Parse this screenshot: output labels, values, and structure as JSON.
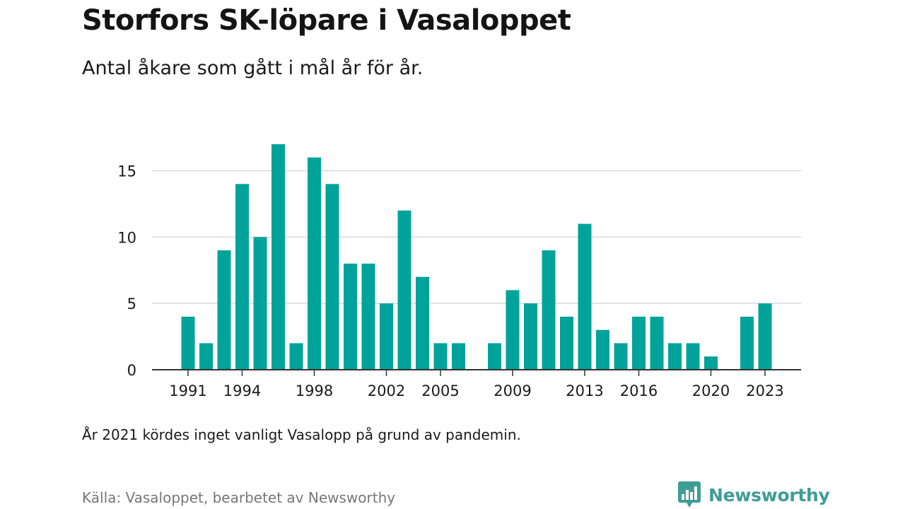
{
  "header": {
    "title": "Storfors SK-löpare i Vasaloppet",
    "subtitle": "Antal åkare som gått i mål år för år."
  },
  "note": "År 2021 kördes inget vanligt Vasalopp på grund av pandemin.",
  "source": "Källa: Vasaloppet, bearbetet av Newsworthy",
  "brand": {
    "name": "Newsworthy",
    "icon": "newsworthy-logo-icon",
    "color": "#3e9d96"
  },
  "colors": {
    "bar": "#00a39a",
    "grid": "#d9d9d9",
    "axis": "#333333"
  },
  "chart_data": {
    "type": "bar",
    "categories": [
      "1991",
      "1992",
      "1993",
      "1994",
      "1995",
      "1996",
      "1997",
      "1998",
      "1999",
      "2000",
      "2001",
      "2002",
      "2003",
      "2004",
      "2005",
      "2006",
      "2007",
      "2008",
      "2009",
      "2010",
      "2011",
      "2012",
      "2013",
      "2014",
      "2015",
      "2016",
      "2017",
      "2018",
      "2019",
      "2020",
      "2021",
      "2022",
      "2023"
    ],
    "values": [
      4,
      2,
      9,
      14,
      10,
      17,
      2,
      16,
      14,
      8,
      8,
      5,
      12,
      7,
      2,
      2,
      null,
      2,
      6,
      5,
      9,
      4,
      11,
      3,
      2,
      4,
      4,
      2,
      2,
      1,
      null,
      4,
      5
    ],
    "x_tick_labels": [
      "1991",
      "1994",
      "1998",
      "2002",
      "2005",
      "2009",
      "2013",
      "2016",
      "2020",
      "2023"
    ],
    "y_ticks": [
      0,
      5,
      10,
      15
    ],
    "ylim": [
      0,
      17
    ],
    "title": "Storfors SK-löpare i Vasaloppet",
    "subtitle": "Antal åkare som gått i mål år för år.",
    "xlabel": "",
    "ylabel": "",
    "grid": true,
    "legend": "none"
  }
}
